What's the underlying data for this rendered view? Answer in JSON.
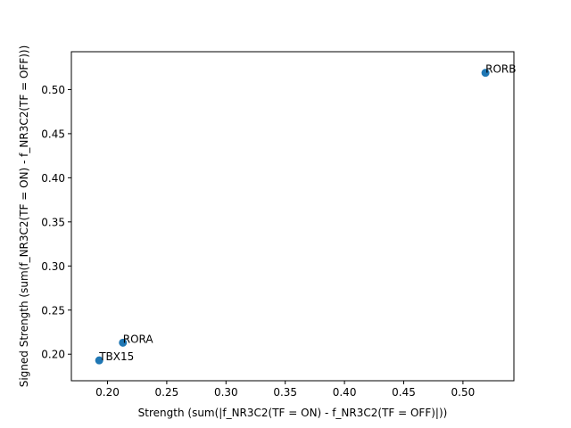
{
  "chart_data": {
    "type": "scatter",
    "xlabel": "Strength (sum(|f_NR3C2(TF = ON) - f_NR3C2(TF = OFF)|))",
    "ylabel": "Signed Strength (sum(f_NR3C2(TF = ON) - f_NR3C2(TF = OFF)))",
    "xlim": [
      0.1695,
      0.543
    ],
    "ylim": [
      0.1699,
      0.5429
    ],
    "x_ticks": [
      0.2,
      0.25,
      0.3,
      0.35,
      0.4,
      0.45,
      0.5
    ],
    "x_tick_labels": [
      "0.20",
      "0.25",
      "0.30",
      "0.35",
      "0.40",
      "0.45",
      "0.50"
    ],
    "y_ticks": [
      0.2,
      0.25,
      0.3,
      0.35,
      0.4,
      0.45,
      0.5
    ],
    "y_tick_labels": [
      "0.20",
      "0.25",
      "0.30",
      "0.35",
      "0.40",
      "0.45",
      "0.50"
    ],
    "grid": false,
    "marker_color": "#1f77b4",
    "points": [
      {
        "label": "RORB",
        "x": 0.519,
        "y": 0.519
      },
      {
        "label": "RORA",
        "x": 0.213,
        "y": 0.213
      },
      {
        "label": "TBX15",
        "x": 0.193,
        "y": 0.193
      }
    ]
  }
}
